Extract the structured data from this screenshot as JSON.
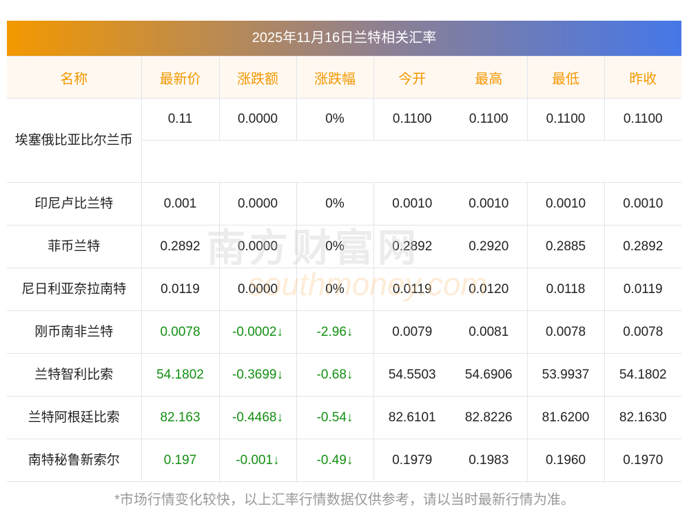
{
  "title": "2025年11月16日兰特相关汇率",
  "headers": [
    "名称",
    "最新价",
    "涨跌额",
    "涨跌幅",
    "今开",
    "最高",
    "最低",
    "昨收"
  ],
  "rows": [
    {
      "name": "埃塞俄比亚比尔兰币",
      "latest": "0.11",
      "change": "0.0000",
      "pct": "0%",
      "open": "0.1100",
      "high": "0.1100",
      "low": "0.1100",
      "prev": "0.1100",
      "down": false
    },
    {
      "name": "印尼卢比兰特",
      "latest": "0.001",
      "change": "0.0000",
      "pct": "0%",
      "open": "0.0010",
      "high": "0.0010",
      "low": "0.0010",
      "prev": "0.0010",
      "down": false
    },
    {
      "name": "菲币兰特",
      "latest": "0.2892",
      "change": "0.0000",
      "pct": "0%",
      "open": "0.2892",
      "high": "0.2920",
      "low": "0.2885",
      "prev": "0.2892",
      "down": false
    },
    {
      "name": "尼日利亚奈拉南特",
      "latest": "0.0119",
      "change": "0.0000",
      "pct": "0%",
      "open": "0.0119",
      "high": "0.0120",
      "low": "0.0118",
      "prev": "0.0119",
      "down": false
    },
    {
      "name": "刚币南非兰特",
      "latest": "0.0078",
      "change": "-0.0002↓",
      "pct": "-2.96↓",
      "open": "0.0079",
      "high": "0.0081",
      "low": "0.0078",
      "prev": "0.0078",
      "down": true
    },
    {
      "name": "兰特智利比索",
      "latest": "54.1802",
      "change": "-0.3699↓",
      "pct": "-0.68↓",
      "open": "54.5503",
      "high": "54.6906",
      "low": "53.9937",
      "prev": "54.1802",
      "down": true
    },
    {
      "name": "兰特阿根廷比索",
      "latest": "82.163",
      "change": "-0.4468↓",
      "pct": "-0.54↓",
      "open": "82.6101",
      "high": "82.8226",
      "low": "81.6200",
      "prev": "82.1630",
      "down": true
    },
    {
      "name": "南特秘鲁新索尔",
      "latest": "0.197",
      "change": "-0.001↓",
      "pct": "-0.49↓",
      "open": "0.1979",
      "high": "0.1983",
      "low": "0.1960",
      "prev": "0.1970",
      "down": true
    }
  ],
  "footer": "*市场行情变化较快，以上汇率行情数据仅供参考，请以当时最新行情为准。",
  "watermark": {
    "cn": "南方财富网",
    "en": "southmoney.com"
  },
  "colors": {
    "header_text": "#f39800",
    "down": "#128f12",
    "gradient_start": "#f39800",
    "gradient_end": "#4677e8"
  }
}
